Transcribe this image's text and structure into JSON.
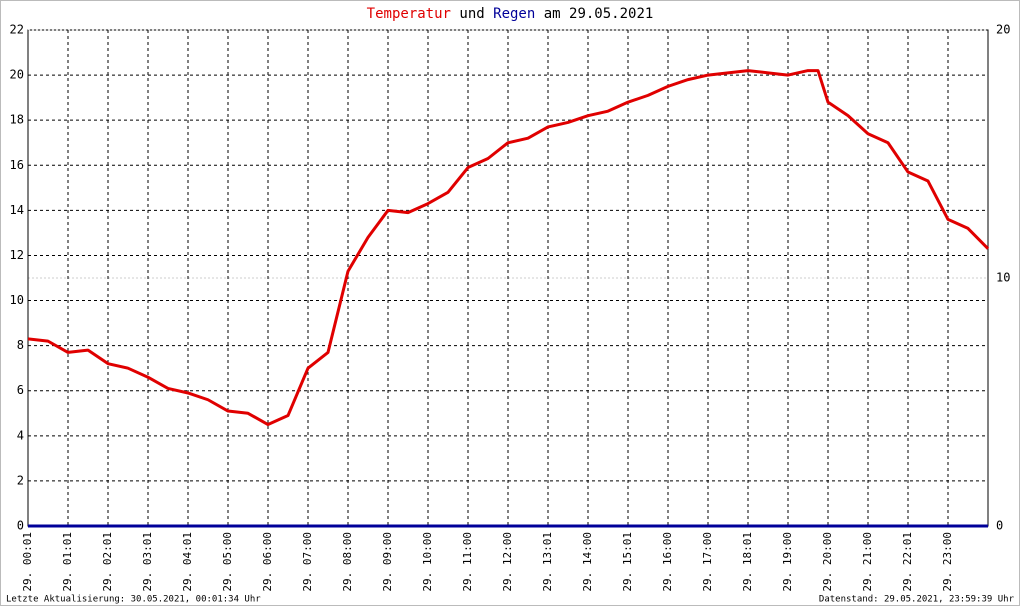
{
  "chart_data": {
    "type": "line",
    "title_connector": "und",
    "title_suffix": "am 29.05.2021",
    "footer_left": "Letzte Aktualisierung: 30.05.2021, 00:01:34 Uhr",
    "footer_right": "Datenstand: 29.05.2021, 23:59:39 Uhr",
    "x": [
      0,
      0.5,
      1,
      1.5,
      2,
      2.5,
      3,
      3.5,
      4,
      4.5,
      5,
      5.5,
      6,
      6.5,
      7,
      7.5,
      8,
      8.5,
      9,
      9.5,
      10,
      10.5,
      11,
      11.5,
      12,
      12.5,
      13,
      13.5,
      14,
      14.5,
      15,
      15.5,
      16,
      16.5,
      17,
      17.5,
      18,
      18.5,
      19,
      19.5,
      19.75,
      20,
      20.5,
      21,
      21.5,
      22,
      22.5,
      23,
      23.5,
      24
    ],
    "series": [
      {
        "name": "Temperatur",
        "color": "#e00000",
        "axis": "y",
        "values": [
          8.3,
          8.2,
          7.7,
          7.8,
          7.2,
          7.0,
          6.6,
          6.1,
          5.9,
          5.6,
          5.1,
          5.0,
          4.5,
          4.9,
          7.0,
          7.7,
          11.3,
          12.8,
          14.0,
          13.9,
          14.3,
          14.8,
          15.9,
          16.3,
          17.0,
          17.2,
          17.7,
          17.9,
          18.2,
          18.4,
          18.8,
          19.1,
          19.5,
          19.8,
          20.0,
          20.1,
          20.2,
          20.1,
          20.0,
          20.2,
          20.2,
          18.8,
          18.2,
          17.4,
          17.0,
          15.7,
          15.3,
          13.6,
          13.2,
          12.3
        ]
      },
      {
        "name": "Regen",
        "color": "#000099",
        "axis": "y2",
        "values": [
          0,
          0,
          0,
          0,
          0,
          0,
          0,
          0,
          0,
          0,
          0,
          0,
          0,
          0,
          0,
          0,
          0,
          0,
          0,
          0,
          0,
          0,
          0,
          0,
          0,
          0,
          0,
          0,
          0,
          0,
          0,
          0,
          0,
          0,
          0,
          0,
          0,
          0,
          0,
          0,
          0,
          0,
          0,
          0,
          0,
          0,
          0,
          0,
          0,
          0
        ]
      }
    ],
    "xlim": [
      0,
      24
    ],
    "xticks": [
      {
        "value": 0,
        "label": "29. 00:01"
      },
      {
        "value": 1,
        "label": "29. 01:01"
      },
      {
        "value": 2,
        "label": "29. 02:01"
      },
      {
        "value": 3,
        "label": "29. 03:01"
      },
      {
        "value": 4,
        "label": "29. 04:01"
      },
      {
        "value": 5,
        "label": "29. 05:00"
      },
      {
        "value": 6,
        "label": "29. 06:00"
      },
      {
        "value": 7,
        "label": "29. 07:00"
      },
      {
        "value": 8,
        "label": "29. 08:00"
      },
      {
        "value": 9,
        "label": "29. 09:00"
      },
      {
        "value": 10,
        "label": "29. 10:00"
      },
      {
        "value": 11,
        "label": "29. 11:00"
      },
      {
        "value": 12,
        "label": "29. 12:00"
      },
      {
        "value": 13,
        "label": "29. 13:01"
      },
      {
        "value": 14,
        "label": "29. 14:00"
      },
      {
        "value": 15,
        "label": "29. 15:01"
      },
      {
        "value": 16,
        "label": "29. 16:00"
      },
      {
        "value": 17,
        "label": "29. 17:00"
      },
      {
        "value": 18,
        "label": "29. 18:01"
      },
      {
        "value": 19,
        "label": "29. 19:00"
      },
      {
        "value": 20,
        "label": "29. 20:00"
      },
      {
        "value": 21,
        "label": "29. 21:00"
      },
      {
        "value": 22,
        "label": "29. 22:01"
      },
      {
        "value": 23,
        "label": "29. 23:00"
      }
    ],
    "ylim": [
      0,
      22
    ],
    "yticks": [
      0,
      2,
      4,
      6,
      8,
      10,
      12,
      14,
      16,
      18,
      20,
      22
    ],
    "y2lim": [
      0,
      20
    ],
    "y2ticks": [
      0,
      10,
      20
    ],
    "grid": true
  }
}
